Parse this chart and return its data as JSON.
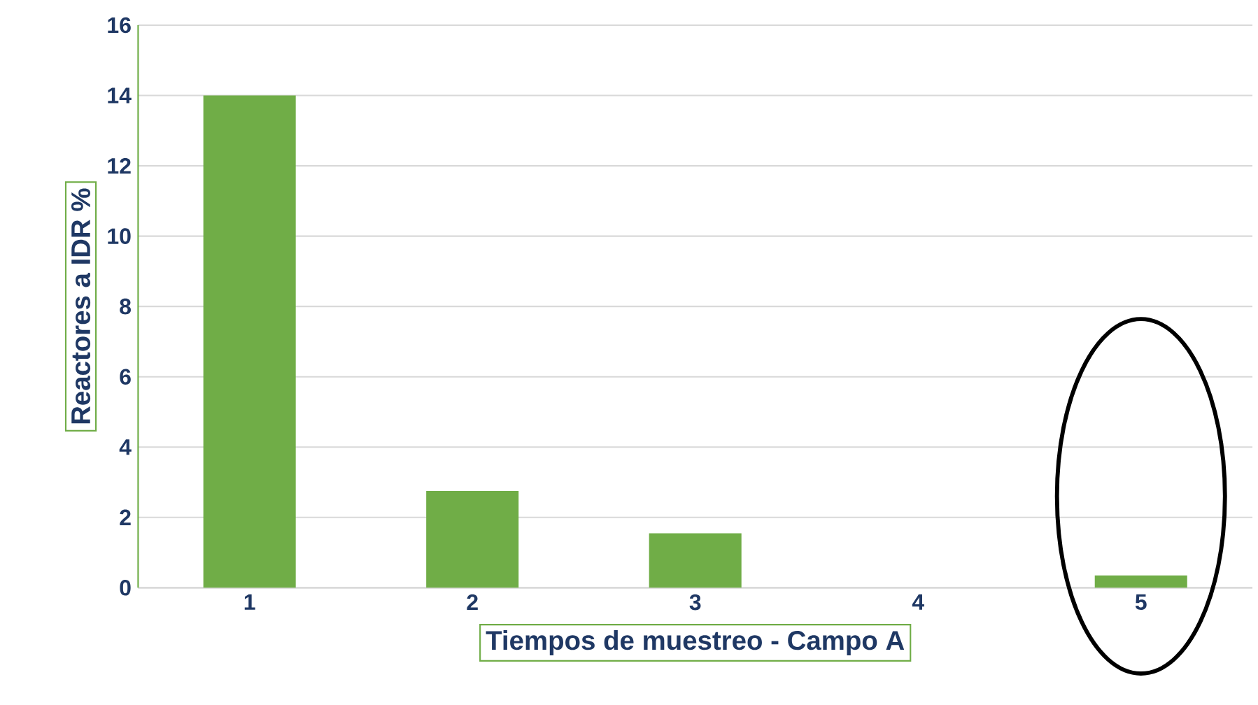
{
  "chart_data": {
    "type": "bar",
    "xlabel": "Tiempos de muestreo - Campo A",
    "ylabel": "Reactores a IDR %",
    "categories": [
      "1",
      "2",
      "3",
      "4",
      "5"
    ],
    "values": [
      14,
      2.75,
      1.55,
      0,
      0.35
    ],
    "color": "#70ad47",
    "ylim": [
      0,
      16
    ],
    "yticks": [
      0,
      2,
      4,
      6,
      8,
      10,
      12,
      14,
      16
    ],
    "grid": "y"
  }
}
